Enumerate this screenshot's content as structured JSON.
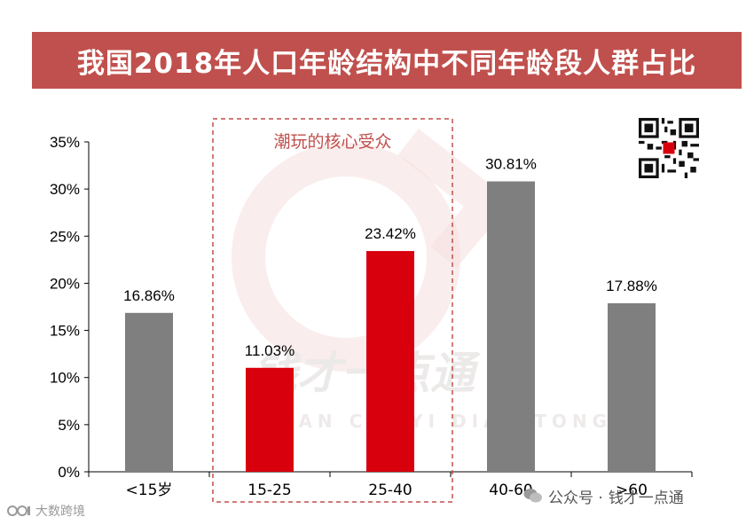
{
  "title": "我国2018年人口年龄结构中不同年龄段人群占比",
  "chart_data": {
    "type": "bar",
    "categories": [
      "<15岁",
      "15-25",
      "25-40",
      "40-60",
      ">60"
    ],
    "values": [
      16.86,
      11.03,
      23.42,
      30.81,
      17.88
    ],
    "value_labels": [
      "16.86%",
      "11.03%",
      "23.42%",
      "30.81%",
      "17.88%"
    ],
    "highlight": [
      false,
      true,
      true,
      false,
      false
    ],
    "ylim": [
      0,
      35
    ],
    "yticks": [
      0,
      5,
      10,
      15,
      20,
      25,
      30,
      35
    ],
    "ytick_labels": [
      "0%",
      "5%",
      "10%",
      "15%",
      "20%",
      "25%",
      "30%",
      "35%"
    ],
    "xlabel": "",
    "ylabel": "",
    "annotation": "潮玩的核心受众",
    "colors": {
      "normal": "#7f7f7f",
      "highlight": "#d9000d",
      "annotation": "#c0504d"
    }
  },
  "watermark": {
    "text": "钱才一点通",
    "subtext": "QIAN CAI YI DIAN TONG"
  },
  "footer": {
    "left_text": "大数跨境",
    "right_prefix": "公众号 ·",
    "right_name": "钱才一点通"
  }
}
